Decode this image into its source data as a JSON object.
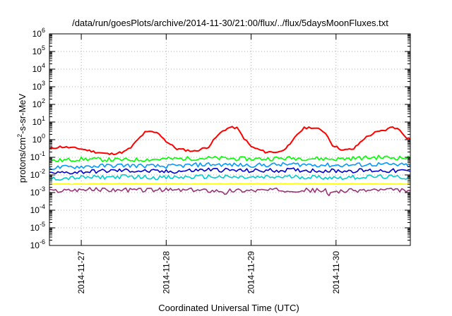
{
  "chart_data": {
    "type": "line",
    "title": "/data/run/goesPlots/archive/2014-11-30/21:00/flux/../flux/5daysMoonFluxes.txt",
    "xlabel": "Coordinated Universal Time (UTC)",
    "ylabel": "protons/cm²-s-sr-MeV",
    "x_range": [
      "2014-11-26 15:00",
      "2014-11-30 21:00"
    ],
    "x_ticks": [
      "2014-11-27",
      "2014-11-28",
      "2014-11-29",
      "2014-11-30"
    ],
    "y_scale": "log",
    "ylim": [
      1e-06,
      1000000.0
    ],
    "y_ticks": [
      {
        "base": "10",
        "exp": "-6",
        "value": 1e-06
      },
      {
        "base": "10",
        "exp": "-5",
        "value": 1e-05
      },
      {
        "base": "10",
        "exp": "-4",
        "value": 0.0001
      },
      {
        "base": "10",
        "exp": "-3",
        "value": 0.001
      },
      {
        "base": "10",
        "exp": "-2",
        "value": 0.01
      },
      {
        "base": "10",
        "exp": "-1",
        "value": 0.1
      },
      {
        "base": "10",
        "exp": "0",
        "value": 1
      },
      {
        "base": "10",
        "exp": "1",
        "value": 10
      },
      {
        "base": "10",
        "exp": "2",
        "value": 100
      },
      {
        "base": "10",
        "exp": "3",
        "value": 1000
      },
      {
        "base": "10",
        "exp": "4",
        "value": 10000
      },
      {
        "base": "10",
        "exp": "5",
        "value": 100000
      },
      {
        "base": "10",
        "exp": "6",
        "value": 1000000
      }
    ],
    "grid": true,
    "series": [
      {
        "color": "#ff0000",
        "points": [
          [
            "2014-11-26 15:00",
            0.3
          ],
          [
            "2014-11-26 18:00",
            0.4
          ],
          [
            "2014-11-26 21:00",
            0.35
          ],
          [
            "2014-11-27 00:00",
            0.3
          ],
          [
            "2014-11-27 04:00",
            0.2
          ],
          [
            "2014-11-27 08:00",
            0.15
          ],
          [
            "2014-11-27 12:00",
            0.2
          ],
          [
            "2014-11-27 14:00",
            0.35
          ],
          [
            "2014-11-27 16:00",
            1.0
          ],
          [
            "2014-11-27 18:00",
            2.6
          ],
          [
            "2014-11-27 20:00",
            2.8
          ],
          [
            "2014-11-27 22:00",
            2.2
          ],
          [
            "2014-11-28 00:00",
            0.8
          ],
          [
            "2014-11-28 03:00",
            0.3
          ],
          [
            "2014-11-28 08:00",
            0.22
          ],
          [
            "2014-11-28 12:00",
            0.4
          ],
          [
            "2014-11-28 14:00",
            1.3
          ],
          [
            "2014-11-28 16:00",
            3.2
          ],
          [
            "2014-11-28 18:00",
            5.0
          ],
          [
            "2014-11-28 20:00",
            4.6
          ],
          [
            "2014-11-28 22:00",
            1.2
          ],
          [
            "2014-11-29 00:00",
            0.4
          ],
          [
            "2014-11-29 04:00",
            0.2
          ],
          [
            "2014-11-29 08:00",
            0.2
          ],
          [
            "2014-11-29 11:00",
            0.5
          ],
          [
            "2014-11-29 13:00",
            2.0
          ],
          [
            "2014-11-29 15:00",
            4.5
          ],
          [
            "2014-11-29 17:00",
            5.0
          ],
          [
            "2014-11-29 19:00",
            4.0
          ],
          [
            "2014-11-29 21:00",
            2.5
          ],
          [
            "2014-11-29 23:00",
            0.5
          ],
          [
            "2014-11-30 02:00",
            0.25
          ],
          [
            "2014-11-30 05:00",
            0.3
          ],
          [
            "2014-11-30 08:00",
            1.2
          ],
          [
            "2014-11-30 11:00",
            2.5
          ],
          [
            "2014-11-30 14:00",
            3.5
          ],
          [
            "2014-11-30 16:00",
            5.5
          ],
          [
            "2014-11-30 18:00",
            3.5
          ],
          [
            "2014-11-30 20:00",
            1.3
          ],
          [
            "2014-11-30 21:00",
            1.1
          ]
        ]
      },
      {
        "color": "#00ff00",
        "points": [
          [
            "2014-11-26 15:00",
            0.06
          ],
          [
            "2014-11-27 00:00",
            0.08
          ],
          [
            "2014-11-27 12:00",
            0.07
          ],
          [
            "2014-11-28 00:00",
            0.08
          ],
          [
            "2014-11-28 12:00",
            0.09
          ],
          [
            "2014-11-29 00:00",
            0.08
          ],
          [
            "2014-11-29 12:00",
            0.09
          ],
          [
            "2014-11-30 00:00",
            0.08
          ],
          [
            "2014-11-30 12:00",
            0.1
          ],
          [
            "2014-11-30 21:00",
            0.09
          ]
        ]
      },
      {
        "color": "#0099ff",
        "points": [
          [
            "2014-11-26 15:00",
            0.025
          ],
          [
            "2014-11-27 00:00",
            0.03
          ],
          [
            "2014-11-27 12:00",
            0.035
          ],
          [
            "2014-11-28 00:00",
            0.03
          ],
          [
            "2014-11-28 12:00",
            0.04
          ],
          [
            "2014-11-29 00:00",
            0.035
          ],
          [
            "2014-11-29 12:00",
            0.04
          ],
          [
            "2014-11-30 00:00",
            0.035
          ],
          [
            "2014-11-30 12:00",
            0.04
          ],
          [
            "2014-11-30 21:00",
            0.035
          ]
        ]
      },
      {
        "color": "#0000cc",
        "points": [
          [
            "2014-11-26 15:00",
            0.012
          ],
          [
            "2014-11-27 00:00",
            0.015
          ],
          [
            "2014-11-27 12:00",
            0.018
          ],
          [
            "2014-11-28 00:00",
            0.015
          ],
          [
            "2014-11-28 12:00",
            0.02
          ],
          [
            "2014-11-29 00:00",
            0.017
          ],
          [
            "2014-11-29 12:00",
            0.019
          ],
          [
            "2014-11-30 00:00",
            0.017
          ],
          [
            "2014-11-30 12:00",
            0.018
          ],
          [
            "2014-11-30 21:00",
            0.016
          ]
        ]
      },
      {
        "color": "#00cccc",
        "points": [
          [
            "2014-11-26 15:00",
            0.006
          ],
          [
            "2014-11-27 00:00",
            0.007
          ],
          [
            "2014-11-27 12:00",
            0.008
          ],
          [
            "2014-11-28 00:00",
            0.007
          ],
          [
            "2014-11-28 12:00",
            0.008
          ],
          [
            "2014-11-29 00:00",
            0.007
          ],
          [
            "2014-11-29 12:00",
            0.008
          ],
          [
            "2014-11-30 00:00",
            0.007
          ],
          [
            "2014-11-30 12:00",
            0.008
          ],
          [
            "2014-11-30 21:00",
            0.007
          ]
        ]
      },
      {
        "color": "#ffff00",
        "points": [
          [
            "2014-11-26 15:00",
            0.003
          ],
          [
            "2014-11-27 12:00",
            0.0032
          ],
          [
            "2014-11-28 12:00",
            0.0031
          ],
          [
            "2014-11-29 12:00",
            0.0032
          ],
          [
            "2014-11-30 12:00",
            0.0031
          ],
          [
            "2014-11-30 21:00",
            0.003
          ]
        ]
      },
      {
        "color": "#993377",
        "points": [
          [
            "2014-11-26 15:00",
            0.0012
          ],
          [
            "2014-11-27 00:00",
            0.0015
          ],
          [
            "2014-11-27 12:00",
            0.0014
          ],
          [
            "2014-11-28 00:00",
            0.0014
          ],
          [
            "2014-11-28 16:00",
            0.0013
          ],
          [
            "2014-11-28 17:00",
            0.0007
          ],
          [
            "2014-11-28 18:00",
            0.0013
          ],
          [
            "2014-11-29 12:00",
            0.0014
          ],
          [
            "2014-11-29 21:00",
            0.0013
          ],
          [
            "2014-11-29 22:00",
            0.0006
          ],
          [
            "2014-11-29 23:00",
            0.0012
          ],
          [
            "2014-11-30 12:00",
            0.0014
          ],
          [
            "2014-11-30 21:00",
            0.0013
          ]
        ]
      }
    ]
  }
}
